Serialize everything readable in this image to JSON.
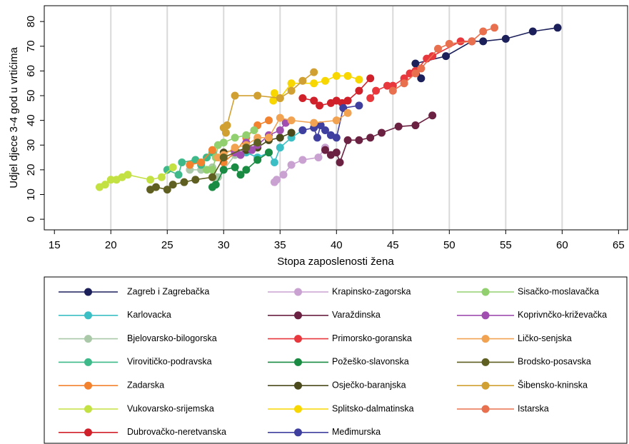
{
  "chart_data": {
    "type": "line",
    "x_label": "Stopa zaposlenosti žena",
    "y_label": "Udjel djece 3-4 god u vrtićima",
    "xlim": [
      14.1,
      65.8
    ],
    "ylim": [
      -4.3,
      86.4
    ],
    "xticks": [
      15,
      20,
      25,
      30,
      35,
      40,
      45,
      50,
      55,
      60,
      65
    ],
    "yticks": [
      0,
      10,
      20,
      30,
      40,
      50,
      60,
      70,
      80
    ],
    "grid": true,
    "legend_position": "bottom",
    "series": [
      {
        "name": "Zagreb i Zagrebačka",
        "color": "#1b1f5a",
        "x": [
          47.5,
          47,
          49.7,
          52,
          53,
          55,
          57.4,
          59.6
        ],
        "values": [
          57,
          63,
          66,
          72,
          72,
          73,
          76,
          77.5
        ]
      },
      {
        "name": "Karlovacka",
        "color": "#3cbfc4",
        "x": [
          32,
          33,
          34,
          34.5,
          35,
          36,
          37
        ],
        "values": [
          27,
          25,
          27,
          23,
          29,
          33,
          36
        ]
      },
      {
        "name": "Bjelovarsko-bilogorska",
        "color": "#a9c9a8",
        "x": [
          27,
          28,
          29,
          29.5,
          31,
          32,
          33
        ],
        "values": [
          20,
          20,
          21,
          17,
          26,
          28,
          30
        ]
      },
      {
        "name": "Virovitičko-podravska",
        "color": "#3db98a",
        "x": [
          25,
          26,
          26.3,
          27.5,
          28,
          28.5,
          29
        ],
        "values": [
          20,
          18,
          23,
          24,
          22,
          25,
          27
        ]
      },
      {
        "name": "Zadarska",
        "color": "#f3822f",
        "x": [
          27,
          28,
          29,
          30,
          31,
          32,
          33,
          34
        ],
        "values": [
          22,
          23,
          28,
          23,
          27,
          33,
          38,
          40
        ]
      },
      {
        "name": "Vukovarsko-srijemska",
        "color": "#c3e142",
        "x": [
          19,
          19.5,
          20,
          20.5,
          21,
          21.5,
          23.5,
          24.5,
          25.5
        ],
        "values": [
          13,
          14,
          16,
          16,
          17,
          18,
          16,
          17,
          21
        ]
      },
      {
        "name": "Dubrovačko-neretvanska",
        "color": "#d0202a",
        "x": [
          37,
          38,
          38.5,
          39.5,
          40,
          40.5,
          41,
          42,
          43
        ],
        "values": [
          49,
          48,
          46,
          47,
          48,
          47,
          48,
          52,
          57
        ]
      },
      {
        "name": "Krapinsko-zagorska",
        "color": "#c9a2d2",
        "x": [
          34.5,
          34.7,
          35.3,
          36,
          37,
          38.4,
          39
        ],
        "values": [
          15,
          16,
          18,
          22,
          24,
          25,
          29
        ]
      },
      {
        "name": "Varaždinska",
        "color": "#6b2142",
        "x": [
          39,
          39.5,
          40,
          40.3,
          41,
          42,
          43,
          44,
          45.5,
          47,
          48.5
        ],
        "values": [
          28,
          26,
          27,
          23,
          32,
          32,
          33,
          35,
          37.5,
          38,
          42
        ]
      },
      {
        "name": "Primorsko-goranska",
        "color": "#e8383d",
        "x": [
          43,
          43.5,
          44.5,
          45,
          46,
          46.5,
          47,
          48,
          48.5,
          51,
          52
        ],
        "values": [
          49,
          52,
          54,
          54,
          57,
          59,
          60,
          65,
          66,
          72,
          72
        ]
      },
      {
        "name": "Požeško-slavonska",
        "color": "#1a8b42",
        "x": [
          29,
          29.3,
          30,
          31,
          31.5,
          32,
          33,
          34
        ],
        "values": [
          13,
          14,
          20,
          21,
          18,
          20,
          24,
          27
        ]
      },
      {
        "name": "Osječko-baranjska",
        "color": "#4a4a1c",
        "x": [
          30,
          31,
          32,
          33,
          34,
          35,
          36
        ],
        "values": [
          27,
          28,
          28,
          29,
          32,
          33,
          35
        ]
      },
      {
        "name": "Splitsko-dalmatinska",
        "color": "#f8d700",
        "x": [
          34.4,
          34.5,
          35,
          36,
          38,
          39,
          40,
          41,
          42
        ],
        "values": [
          48,
          51,
          49,
          55,
          55,
          56,
          58,
          58,
          56.5
        ]
      },
      {
        "name": "Međimurska",
        "color": "#3f3f9f",
        "x": [
          37,
          38,
          38.3,
          38.6,
          39,
          39.5,
          40,
          40.6,
          42
        ],
        "values": [
          36,
          37,
          33,
          38,
          36,
          34,
          33,
          45,
          46
        ]
      },
      {
        "name": "Sisačko-moslavačka",
        "color": "#92d06f",
        "x": [
          28.5,
          29,
          29.3,
          29.5,
          30,
          31,
          32,
          32.7
        ],
        "values": [
          20,
          20,
          25,
          30,
          31,
          33,
          34,
          36
        ]
      },
      {
        "name": "Koprivnčko-križevačka",
        "color": "#a04fb0",
        "x": [
          31,
          31.5,
          32,
          32.5,
          33,
          34,
          35,
          35.5
        ],
        "values": [
          27,
          26,
          31,
          28,
          30,
          34,
          36,
          39
        ]
      },
      {
        "name": "Ličko-senjska",
        "color": "#f2a352",
        "x": [
          29.5,
          30,
          31,
          32,
          33,
          34,
          35,
          36,
          38,
          40,
          41
        ],
        "values": [
          25,
          26,
          29,
          30,
          33,
          33,
          41,
          40,
          39,
          40,
          43
        ]
      },
      {
        "name": "Brodsko-posavska",
        "color": "#5f5f22",
        "x": [
          23.5,
          24,
          25,
          25.5,
          26.5,
          27.5,
          29,
          30,
          32,
          33
        ],
        "values": [
          12,
          13,
          12,
          14,
          15,
          16,
          17,
          25,
          29,
          31
        ]
      },
      {
        "name": "Šibensko-kninska",
        "color": "#d1a032",
        "x": [
          30,
          30.2,
          30.3,
          31,
          33,
          35,
          36,
          37,
          38
        ],
        "values": [
          37,
          35,
          38,
          50,
          50,
          49,
          52,
          56,
          59.5
        ]
      },
      {
        "name": "Istarska",
        "color": "#e8704f",
        "x": [
          45,
          46,
          47,
          47.5,
          49,
          50,
          52,
          53,
          54
        ],
        "values": [
          52,
          55,
          59,
          61,
          69,
          71,
          72,
          76,
          77.5
        ]
      }
    ]
  }
}
